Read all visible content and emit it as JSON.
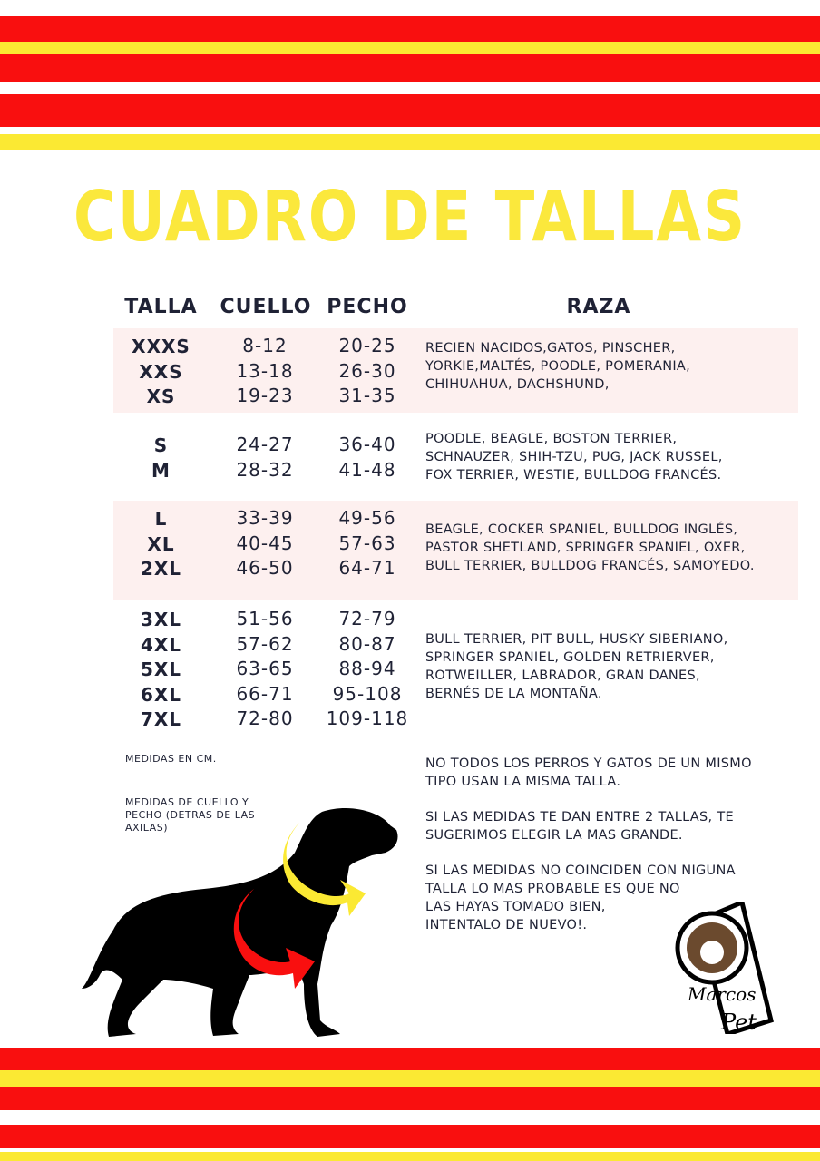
{
  "title": "CUADRO DE TALLAS",
  "headers": {
    "talla": "TALLA",
    "cuello": "CUELLO",
    "pecho": "PECHO",
    "raza": "RAZA"
  },
  "groups": [
    {
      "tallas": "XXXS\nXXS\nXS",
      "cuello": "8-12\n13-18\n19-23",
      "pecho": "20-25\n26-30\n31-35",
      "raza": "RECIEN NACIDOS,GATOS, PINSCHER,\nYORKIE,MALTÉS, POODLE, POMERANIA,\nCHIHUAHUA, DACHSHUND,"
    },
    {
      "tallas": "S\nM",
      "cuello": "24-27\n28-32",
      "pecho": "36-40\n41-48",
      "raza": "POODLE, BEAGLE, BOSTON TERRIER,\nSCHNAUZER, SHIH-TZU, PUG, JACK RUSSEL,\nFOX TERRIER, WESTIE, BULLDOG FRANCÉS."
    },
    {
      "tallas": "L\nXL\n2XL",
      "cuello": "33-39\n40-45\n46-50",
      "pecho": "49-56\n57-63\n64-71",
      "raza": "BEAGLE, COCKER SPANIEL, BULLDOG INGLÉS,\nPASTOR SHETLAND, SPRINGER SPANIEL, OXER,\nBULL TERRIER, BULLDOG FRANCÉS, SAMOYEDO."
    },
    {
      "tallas": "3XL\n4XL\n5XL\n6XL\n7XL",
      "cuello": "51-56\n57-62\n63-65\n66-71\n72-80",
      "pecho": "72-79\n80-87\n88-94\n95-108\n109-118",
      "raza": "BULL TERRIER, PIT BULL, HUSKY SIBERIANO,\nSPRINGER SPANIEL, GOLDEN RETRIERVER,\nROTWEILLER, LABRADOR, GRAN DANES,\nBERNÉS DE LA MONTAÑA."
    }
  ],
  "units_note": "MEDIDAS EN CM.",
  "measure_note": "MEDIDAS DE CUELLO Y\nPECHO (DETRAS DE LAS\nAXILAS)",
  "notes": [
    "NO TODOS LOS PERROS Y GATOS DE UN MISMO\nTIPO USAN LA MISMA TALLA.",
    "SI LAS MEDIDAS TE DAN ENTRE 2 TALLAS, TE\nSUGERIMOS ELEGIR LA MAS GRANDE.",
    "SI LAS MEDIDAS NO COINCIDEN CON NIGUNA\nTALLA LO MAS PROBABLE ES QUE NO\nLAS HAYAS TOMADO BIEN,\nINTENTALO DE NUEVO!."
  ],
  "logo": "Marcos Pet",
  "colors": {
    "red": "#f90f0f",
    "yellow": "#fbe933",
    "pink": "#fdf0ef",
    "text": "#1f2235"
  }
}
